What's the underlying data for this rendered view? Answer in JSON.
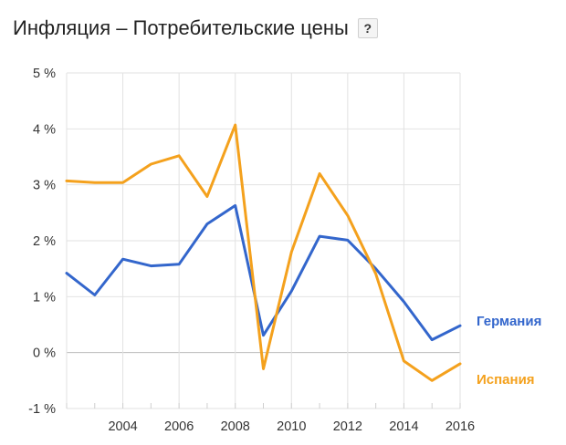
{
  "header": {
    "title": "Инфляция – Потребительские цены",
    "help_label": "?"
  },
  "colors": {
    "germany": "#3366cc",
    "spain": "#f4a11d",
    "grid": "#e2e2e2",
    "axis": "#333333"
  },
  "chart_data": {
    "type": "line",
    "title": "Инфляция – Потребительские цены",
    "xlabel": "",
    "ylabel": "",
    "x": [
      2002,
      2003,
      2004,
      2005,
      2006,
      2007,
      2008,
      2009,
      2010,
      2011,
      2012,
      2013,
      2014,
      2015,
      2016
    ],
    "xlim": [
      2002,
      2016
    ],
    "ylim": [
      -1,
      5
    ],
    "x_ticks": [
      2004,
      2006,
      2008,
      2010,
      2012,
      2014,
      2016
    ],
    "x_tick_labels": [
      "2004",
      "2006",
      "2008",
      "2010",
      "2012",
      "2014",
      "2016"
    ],
    "y_ticks": [
      5,
      4,
      3,
      2,
      1,
      0,
      -1
    ],
    "y_tick_labels": [
      "5 %",
      "4 %",
      "3 %",
      "2 %",
      "1 %",
      "0 %",
      "-1 %"
    ],
    "grid": true,
    "legend": "right",
    "series": [
      {
        "name": "Германия",
        "color": "#3366cc",
        "values": [
          1.42,
          1.03,
          1.67,
          1.55,
          1.58,
          2.3,
          2.63,
          0.31,
          1.1,
          2.08,
          2.01,
          1.5,
          0.91,
          0.23,
          0.48
        ]
      },
      {
        "name": "Испания",
        "color": "#f4a11d",
        "values": [
          3.07,
          3.04,
          3.04,
          3.37,
          3.52,
          2.79,
          4.07,
          -0.29,
          1.8,
          3.2,
          2.45,
          1.41,
          -0.15,
          -0.5,
          -0.2
        ]
      }
    ]
  }
}
